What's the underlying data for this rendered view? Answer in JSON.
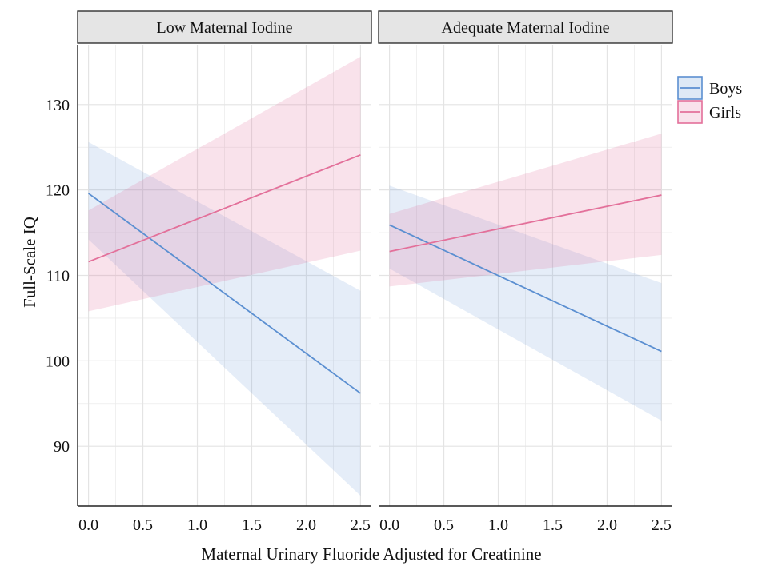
{
  "chart_data": {
    "type": "line",
    "xlabel": "Maternal Urinary Fluoride Adjusted for Creatinine",
    "ylabel": "Full-Scale IQ",
    "xlim": [
      -0.1,
      2.6
    ],
    "ylim": [
      83,
      137
    ],
    "x_ticks": [
      "0.0",
      "0.5",
      "1.0",
      "1.5",
      "2.0",
      "2.5"
    ],
    "y_ticks": [
      "90",
      "100",
      "110",
      "120",
      "130"
    ],
    "grid": true,
    "legend": {
      "placement": "right",
      "entries": [
        "Boys",
        "Girls"
      ]
    },
    "colors": {
      "Boys": "#5b8fd1",
      "Girls": "#e3709a",
      "strip_fill": "#e5e5e5",
      "grid": "#ececec"
    },
    "panels": [
      {
        "title": "Low Maternal Iodine",
        "series": [
          {
            "name": "Boys",
            "x": [
              0.0,
              2.5
            ],
            "y": [
              119.6,
              96.2
            ],
            "ci_lower": [
              114.2,
              84.2
            ],
            "ci_upper": [
              125.6,
              108.2
            ]
          },
          {
            "name": "Girls",
            "x": [
              0.0,
              2.5
            ],
            "y": [
              111.6,
              124.1
            ],
            "ci_lower": [
              105.8,
              112.9
            ],
            "ci_upper": [
              117.6,
              135.6
            ]
          }
        ]
      },
      {
        "title": "Adequate Maternal Iodine",
        "series": [
          {
            "name": "Boys",
            "x": [
              0.0,
              2.5
            ],
            "y": [
              115.9,
              101.1
            ],
            "ci_lower": [
              110.8,
              93.0
            ],
            "ci_upper": [
              120.5,
              109.1
            ]
          },
          {
            "name": "Girls",
            "x": [
              0.0,
              2.5
            ],
            "y": [
              112.8,
              119.4
            ],
            "ci_lower": [
              108.7,
              112.4
            ],
            "ci_upper": [
              117.2,
              126.6
            ]
          }
        ]
      }
    ]
  }
}
